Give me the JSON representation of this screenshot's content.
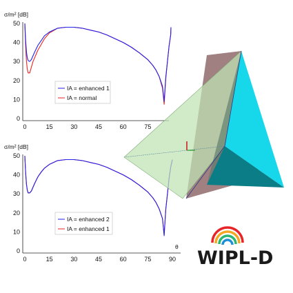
{
  "chart_data": [
    {
      "type": "line",
      "ylabel": "σ/m² [dB]",
      "xlabel": "",
      "xlim": [
        0,
        90
      ],
      "ylim": [
        0,
        50
      ],
      "xticks": [
        "0",
        "15",
        "30",
        "45",
        "60",
        "75"
      ],
      "yticks": [
        "0",
        "10",
        "20",
        "30",
        "40",
        "50"
      ],
      "legend_position": "center-right",
      "series": [
        {
          "name": "IA = enhanced 1",
          "color": "#2222ee",
          "x": [
            0,
            0.5,
            1,
            1.5,
            2,
            3,
            4,
            5,
            6,
            8,
            10,
            12,
            15,
            20,
            25,
            30,
            35,
            40,
            45,
            50,
            55,
            60,
            65,
            70,
            75,
            78,
            80,
            82,
            84,
            85,
            86,
            87,
            88,
            89,
            90
          ],
          "y": [
            50,
            41,
            35,
            32,
            30.5,
            30,
            31,
            33,
            35,
            38.5,
            41,
            43.5,
            45.5,
            47.5,
            48,
            48,
            47.5,
            46.5,
            45.5,
            44,
            42,
            40,
            37.5,
            34.5,
            31,
            28,
            25.5,
            22,
            17,
            9,
            22,
            30,
            38,
            44,
            48
          ]
        },
        {
          "name": "IA = normal",
          "color": "#ee2222",
          "x": [
            0,
            0.5,
            1,
            1.5,
            2,
            3,
            4,
            5,
            6,
            8,
            10,
            12,
            15,
            20,
            25,
            30,
            35,
            40,
            45,
            50,
            55,
            60,
            65,
            70,
            75,
            78,
            80,
            82,
            84,
            85,
            86,
            87,
            88,
            89,
            90
          ],
          "y": [
            50,
            38,
            30,
            26,
            24,
            24,
            27,
            30,
            32,
            36,
            39,
            42,
            45,
            47.5,
            48,
            48,
            47.5,
            46.5,
            45.5,
            44,
            42,
            40,
            37.5,
            34.5,
            31,
            28,
            25.5,
            22,
            16,
            7.5,
            21,
            30,
            38,
            44,
            48
          ]
        }
      ]
    },
    {
      "type": "line",
      "ylabel": "σ/m² [dB]",
      "xlabel": "θ",
      "xlim": [
        0,
        90
      ],
      "ylim": [
        0,
        50
      ],
      "xticks": [
        "0",
        "15",
        "30",
        "45",
        "60",
        "75",
        "90"
      ],
      "yticks": [
        "0",
        "10",
        "20",
        "30",
        "40",
        "50"
      ],
      "legend_position": "center-right",
      "series": [
        {
          "name": "IA = enhanced 2",
          "color": "#2222ee",
          "x": [
            0,
            0.5,
            1,
            1.5,
            2,
            3,
            4,
            5,
            6,
            8,
            10,
            12,
            15,
            20,
            25,
            30,
            35,
            40,
            45,
            50,
            55,
            60,
            65,
            70,
            75,
            78,
            80,
            82,
            84,
            85,
            86,
            87,
            88,
            89,
            90
          ],
          "y": [
            50,
            41,
            35,
            32,
            30.5,
            30.5,
            31.5,
            33.5,
            35.5,
            39,
            41.5,
            43.5,
            45.5,
            47.5,
            48,
            48,
            47.5,
            46.5,
            45.5,
            44,
            42,
            40,
            37.5,
            34.5,
            31,
            28,
            25.5,
            22,
            17,
            8,
            22,
            30,
            38,
            44,
            48
          ]
        },
        {
          "name": "IA = enhanced 1",
          "color": "#ee2222",
          "x": [
            0,
            0.5,
            1,
            1.5,
            2,
            3,
            4,
            5,
            6,
            8,
            10,
            12,
            15,
            20,
            25,
            30,
            35,
            40,
            45,
            50,
            55,
            60,
            65,
            70,
            75,
            78,
            80,
            82,
            84,
            85,
            86,
            87,
            88,
            89,
            90
          ],
          "y": [
            50,
            41,
            35,
            32,
            30.5,
            30.5,
            31.5,
            33.5,
            35.5,
            39,
            41.5,
            43.5,
            45.5,
            47.5,
            48,
            48,
            47.5,
            46.5,
            45.5,
            44,
            42,
            40,
            37.5,
            34.5,
            31,
            28,
            25.5,
            22,
            17,
            8.5,
            22,
            30,
            38,
            44,
            48
          ]
        }
      ]
    }
  ],
  "logo": {
    "text": "WIPL-D",
    "colors": [
      "#e8262a",
      "#f5a623",
      "#2bb673",
      "#1e90d6"
    ]
  },
  "model": {
    "plane_color": "#bfe3b4",
    "plate_color": "#8f6a6a",
    "pyramid_color": "#16d8ea",
    "pyramid_dark": "#0a7d86"
  }
}
